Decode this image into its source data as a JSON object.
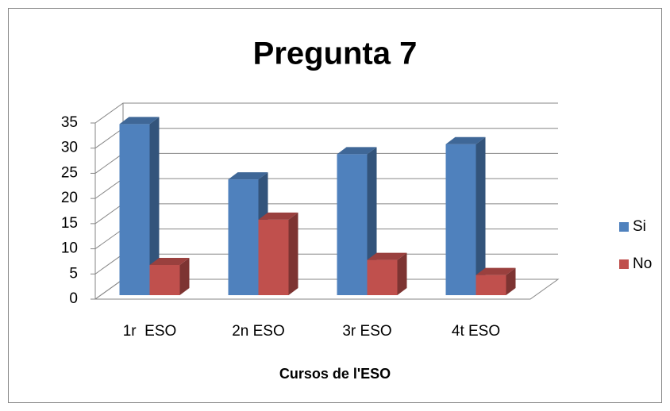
{
  "chart_data": {
    "type": "bar3d",
    "title": "Pregunta 7",
    "x_label": "Cursos de l'ESO",
    "categories": [
      "1r  ESO",
      "2n ESO",
      "3r ESO",
      "4t ESO"
    ],
    "series": [
      {
        "name": "Si",
        "color": "#4f81bd",
        "values": [
          34,
          23,
          28,
          30
        ]
      },
      {
        "name": "No",
        "color": "#c0504d",
        "values": [
          6,
          15,
          7,
          4
        ]
      }
    ],
    "ylim": [
      0,
      35
    ],
    "yticks": [
      0,
      5,
      10,
      15,
      20,
      25,
      30,
      35
    ],
    "grid": true,
    "legend": "right"
  }
}
